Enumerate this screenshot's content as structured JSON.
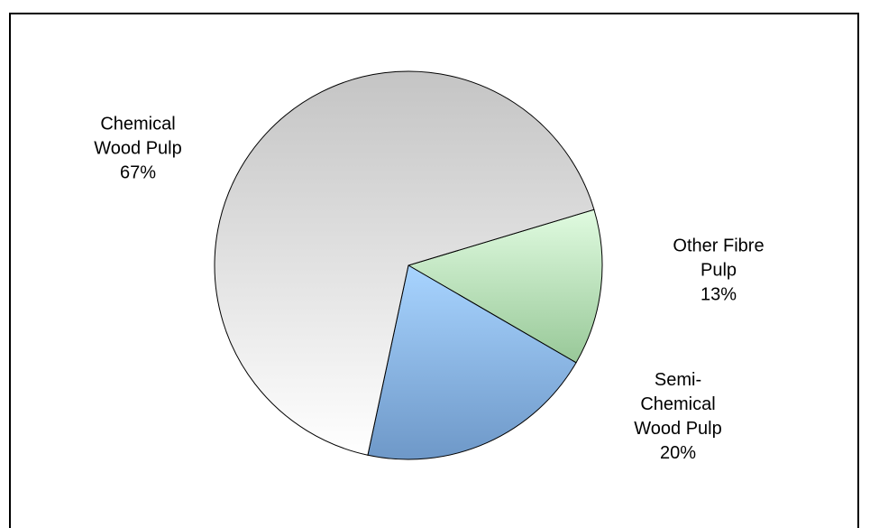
{
  "chart_data": {
    "type": "pie",
    "categories": [
      "Other Fibre Pulp",
      "Semi-Chemical Wood Pulp",
      "Chemical Wood Pulp"
    ],
    "values": [
      13,
      20,
      67
    ],
    "value_labels": [
      "13%",
      "20%",
      "67%"
    ],
    "colors": [
      [
        "#e0fbe0",
        "#98c898"
      ],
      [
        "#a8d4ff",
        "#6e98c8"
      ],
      [
        "#c4c4c4",
        "#ffffff"
      ]
    ]
  }
}
